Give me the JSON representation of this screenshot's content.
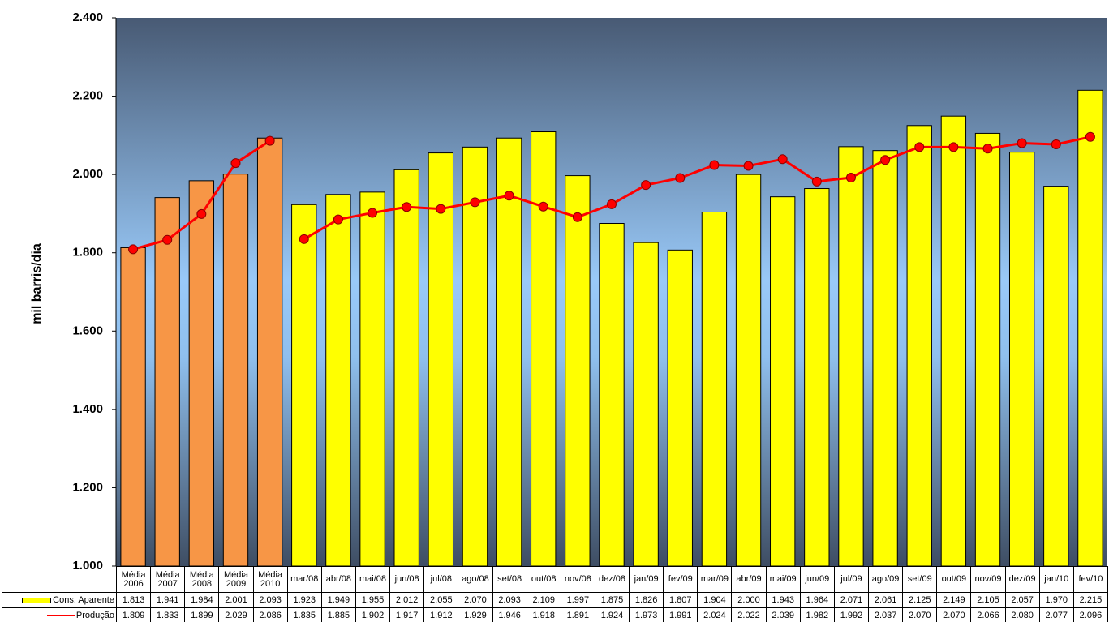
{
  "chart_data": {
    "type": "bar-line",
    "y_label": "mil barris/dia",
    "categories": [
      "Média 2006",
      "Média 2007",
      "Média 2008",
      "Média 2009",
      "Média 2010",
      "mar/08",
      "abr/08",
      "mai/08",
      "jun/08",
      "jul/08",
      "ago/08",
      "set/08",
      "out/08",
      "nov/08",
      "dez/08",
      "jan/09",
      "fev/09",
      "mar/09",
      "abr/09",
      "mai/09",
      "jun/09",
      "jul/09",
      "ago/09",
      "set/09",
      "out/09",
      "nov/09",
      "dez/09",
      "jan/10",
      "fev/10"
    ],
    "series": [
      {
        "name": "Cons. Aparente",
        "kind": "bar",
        "color": "#ffff00",
        "colors": [
          "#f79646",
          "#f79646",
          "#f79646",
          "#f79646",
          "#f79646",
          "#ffff00",
          "#ffff00",
          "#ffff00",
          "#ffff00",
          "#ffff00",
          "#ffff00",
          "#ffff00",
          "#ffff00",
          "#ffff00",
          "#ffff00",
          "#ffff00",
          "#ffff00",
          "#ffff00",
          "#ffff00",
          "#ffff00",
          "#ffff00",
          "#ffff00",
          "#ffff00",
          "#ffff00",
          "#ffff00",
          "#ffff00",
          "#ffff00",
          "#ffff00",
          "#ffff00"
        ],
        "values": [
          1813,
          1941,
          1984,
          2001,
          2093,
          1923,
          1949,
          1955,
          2012,
          2055,
          2070,
          2093,
          2109,
          1997,
          1875,
          1826,
          1807,
          1904,
          2000,
          1943,
          1964,
          2071,
          2061,
          2125,
          2149,
          2105,
          2057,
          1970,
          2215
        ],
        "value_labels": [
          "1.813",
          "1.941",
          "1.984",
          "2.001",
          "2.093",
          "1.923",
          "1.949",
          "1.955",
          "2.012",
          "2.055",
          "2.070",
          "2.093",
          "2.109",
          "1.997",
          "1.875",
          "1.826",
          "1.807",
          "1.904",
          "2.000",
          "1.943",
          "1.964",
          "2.071",
          "2.061",
          "2.125",
          "2.149",
          "2.105",
          "2.057",
          "1.970",
          "2.215"
        ]
      },
      {
        "name": "Produção",
        "kind": "line",
        "color": "#ff0000",
        "line_breaks": [
          5
        ],
        "values": [
          1809,
          1833,
          1899,
          2029,
          2086,
          1835,
          1885,
          1902,
          1917,
          1912,
          1929,
          1946,
          1918,
          1891,
          1924,
          1973,
          1991,
          2024,
          2022,
          2039,
          1982,
          1992,
          2037,
          2070,
          2070,
          2066,
          2080,
          2077,
          2096
        ],
        "value_labels": [
          "1.809",
          "1.833",
          "1.899",
          "2.029",
          "2.086",
          "1.835",
          "1.885",
          "1.902",
          "1.917",
          "1.912",
          "1.929",
          "1.946",
          "1.918",
          "1.891",
          "1.924",
          "1.973",
          "1.991",
          "2.024",
          "2.022",
          "2.039",
          "1.982",
          "1.992",
          "2.037",
          "2.070",
          "2.070",
          "2.066",
          "2.080",
          "2.077",
          "2.096"
        ]
      }
    ],
    "ylim": [
      1000,
      2400
    ],
    "yticks": [
      {
        "value": 1000,
        "label": "1.000"
      },
      {
        "value": 1200,
        "label": "1.200"
      },
      {
        "value": 1400,
        "label": "1.400"
      },
      {
        "value": 1600,
        "label": "1.600"
      },
      {
        "value": 1800,
        "label": "1.800"
      },
      {
        "value": 2000,
        "label": "2.000"
      },
      {
        "value": 2200,
        "label": "2.200"
      },
      {
        "value": 2400,
        "label": "2.400"
      }
    ]
  }
}
